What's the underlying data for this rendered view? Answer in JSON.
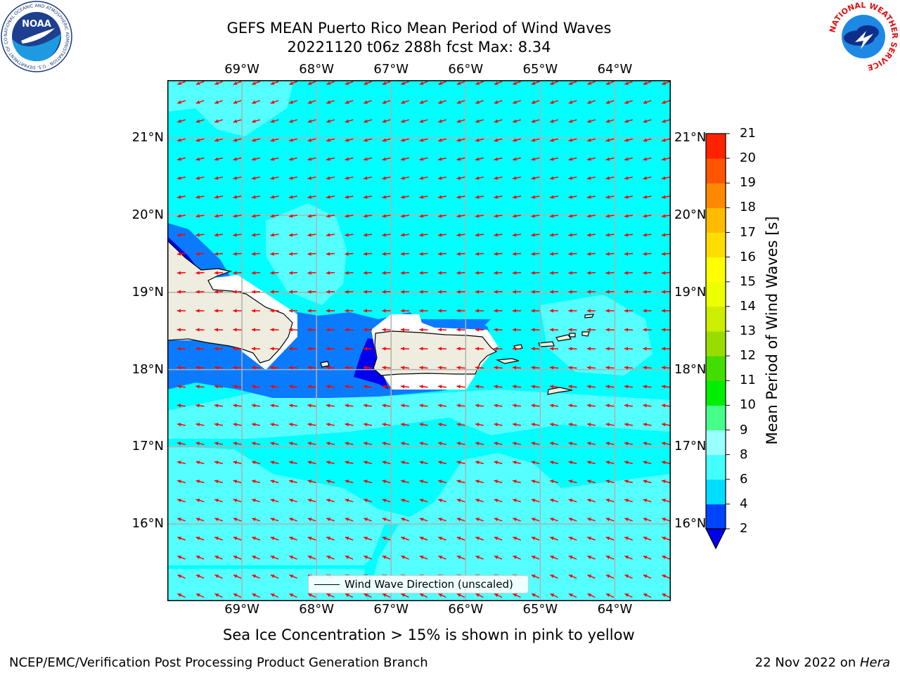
{
  "header": {
    "title": "GEFS MEAN Puerto Rico Mean Period of Wind Waves",
    "subtitle": "20221120 t06z 288h fcst   Max: 8.34"
  },
  "map": {
    "lon_labels": [
      "69°W",
      "68°W",
      "67°W",
      "66°W",
      "65°W",
      "64°W"
    ],
    "lat_labels": [
      "21°N",
      "20°N",
      "19°N",
      "18°N",
      "17°N",
      "16°N"
    ],
    "lon_values": [
      -69,
      -68,
      -67,
      -66,
      -65,
      -64
    ],
    "lat_values": [
      21,
      20,
      19,
      18,
      17,
      16
    ],
    "lon_range": [
      -70,
      -63.25
    ],
    "lat_range": [
      15,
      21.75
    ],
    "gridlines": true,
    "arrow_color": "#ff0000",
    "land_color": "#efeddf",
    "legend_label": "Wind Wave Direction (unscaled)"
  },
  "colorbar": {
    "label": "Mean Period of Wind Waves [s]",
    "ticks": [
      "2",
      "4",
      "6",
      "8",
      "9",
      "10",
      "11",
      "12",
      "13",
      "14",
      "15",
      "16",
      "17",
      "18",
      "19",
      "20",
      "21"
    ],
    "colors": [
      "#0044ff",
      "#00ddff",
      "#44ffff",
      "#99ffff",
      "#44ff88",
      "#00ee00",
      "#44dd00",
      "#99dd00",
      "#ccee00",
      "#eeff00",
      "#ffff00",
      "#ffdd00",
      "#ffbb00",
      "#ff8800",
      "#ff5500",
      "#ff2200"
    ],
    "under_color": "#0000ee",
    "top_color": "#ff0000"
  },
  "footer": {
    "note": "Sea Ice Concentration > 15% is shown in pink to yellow",
    "credit_left": "NCEP/EMC/Verification Post Processing Product Generation Branch",
    "date": "22 Nov 2022 on ",
    "host": "Hera"
  },
  "logos": {
    "noaa_text": "NOAA",
    "noaa_ring_text": "NATIONAL OCEANIC AND ATMOSPHERIC ADMINISTRATION · U.S. DEPARTMENT OF COMMERCE",
    "nws_ring_text": "NATIONAL WEATHER SERVICE"
  }
}
